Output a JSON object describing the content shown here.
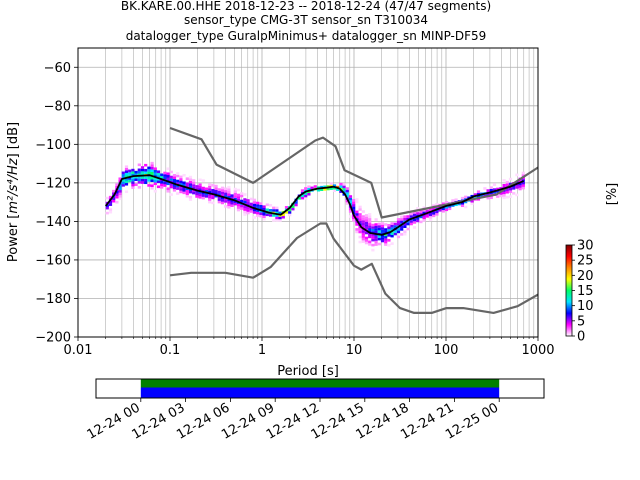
{
  "chart_data": {
    "type": "psd",
    "title_lines": [
      "BK.KARE.00.HHE   2018-12-23 -- 2018-12-24  (47/47 segments)",
      "sensor_type CMG-3T sensor_sn T310034",
      "datalogger_type GuralpMinimus+ datalogger_sn MINP-DF59"
    ],
    "xlabel": "Period [s]",
    "ylabel_prefix": "Power [",
    "ylabel_math": "m²/s⁴/Hz",
    "ylabel_suffix": "] [dB]",
    "x_scale": "log",
    "xlim": [
      0.01,
      1000
    ],
    "ylim": [
      -200,
      -50
    ],
    "x_ticks": [
      {
        "value": 0.01,
        "label": "0.01"
      },
      {
        "value": 0.1,
        "label": "0.1"
      },
      {
        "value": 1,
        "label": "1"
      },
      {
        "value": 10,
        "label": "10"
      },
      {
        "value": 100,
        "label": "100"
      },
      {
        "value": 1000,
        "label": "1000"
      }
    ],
    "y_ticks": [
      {
        "value": -60,
        "label": "−60"
      },
      {
        "value": -80,
        "label": "−80"
      },
      {
        "value": -100,
        "label": "−100"
      },
      {
        "value": -120,
        "label": "−120"
      },
      {
        "value": -140,
        "label": "−140"
      },
      {
        "value": -160,
        "label": "−160"
      },
      {
        "value": -180,
        "label": "−180"
      },
      {
        "value": -200,
        "label": "−200"
      }
    ],
    "grid": true,
    "colorbar": {
      "label": "[%]",
      "min": 0,
      "max": 30,
      "ticks": [
        {
          "value": 0,
          "label": "0"
        },
        {
          "value": 5,
          "label": "5"
        },
        {
          "value": 10,
          "label": "10"
        },
        {
          "value": 15,
          "label": "15"
        },
        {
          "value": 20,
          "label": "20"
        },
        {
          "value": 25,
          "label": "25"
        },
        {
          "value": 30,
          "label": "30"
        }
      ]
    },
    "nhnm": {
      "name": "New High Noise Model",
      "color": "#666666",
      "points": [
        [
          0.1,
          -91.5
        ],
        [
          0.22,
          -97.4
        ],
        [
          0.32,
          -110.5
        ],
        [
          0.8,
          -120
        ],
        [
          3.8,
          -98
        ],
        [
          4.6,
          -96.5
        ],
        [
          6.3,
          -101
        ],
        [
          7.9,
          -113.5
        ],
        [
          15.4,
          -120
        ],
        [
          20,
          -138
        ],
        [
          354.8,
          -126
        ],
        [
          1000,
          -112
        ]
      ]
    },
    "nlnm": {
      "name": "New Low Noise Model",
      "color": "#666666",
      "points": [
        [
          0.1,
          -168
        ],
        [
          0.17,
          -166.7
        ],
        [
          0.4,
          -166.7
        ],
        [
          0.8,
          -169.2
        ],
        [
          1.24,
          -163.7
        ],
        [
          2.4,
          -148.6
        ],
        [
          4.3,
          -141.1
        ],
        [
          5,
          -141.1
        ],
        [
          6,
          -149
        ],
        [
          10,
          -163
        ],
        [
          12,
          -165
        ],
        [
          15.6,
          -162
        ],
        [
          21.9,
          -177.5
        ],
        [
          31.6,
          -185
        ],
        [
          45,
          -187.5
        ],
        [
          70,
          -187.5
        ],
        [
          101,
          -185
        ],
        [
          154,
          -185
        ],
        [
          328,
          -187.5
        ],
        [
          600,
          -184
        ],
        [
          1000,
          -178
        ]
      ]
    },
    "mode": {
      "name": "mode",
      "color": "#000000",
      "points": [
        [
          0.02,
          -132
        ],
        [
          0.025,
          -126
        ],
        [
          0.03,
          -118
        ],
        [
          0.04,
          -116.5
        ],
        [
          0.06,
          -116
        ],
        [
          0.08,
          -118
        ],
        [
          0.12,
          -121
        ],
        [
          0.2,
          -124
        ],
        [
          0.3,
          -126
        ],
        [
          0.5,
          -129
        ],
        [
          0.8,
          -133
        ],
        [
          1.2,
          -135.5
        ],
        [
          1.6,
          -136.5
        ],
        [
          2,
          -133
        ],
        [
          2.5,
          -127
        ],
        [
          3,
          -124.5
        ],
        [
          4,
          -123
        ],
        [
          5,
          -122.5
        ],
        [
          6,
          -122
        ],
        [
          7,
          -123
        ],
        [
          8,
          -126
        ],
        [
          9,
          -131
        ],
        [
          10,
          -137
        ],
        [
          12,
          -143
        ],
        [
          15,
          -146
        ],
        [
          20,
          -147
        ],
        [
          25,
          -145.5
        ],
        [
          30,
          -143
        ],
        [
          40,
          -139
        ],
        [
          60,
          -136
        ],
        [
          100,
          -132
        ],
        [
          150,
          -130
        ],
        [
          200,
          -127
        ],
        [
          300,
          -125
        ],
        [
          500,
          -122
        ],
        [
          700,
          -119
        ]
      ]
    },
    "psd_scatter": {
      "name": "probabilistic PSD bands",
      "color_stops": [
        "#ffffff",
        "#ff00ff",
        "#0000ff",
        "#00e5ff",
        "#00ff66",
        "#ffff00",
        "#ff8800",
        "#ff0000",
        "#800000"
      ],
      "bands": [
        {
          "x": [
            0.02,
            0.025,
            0.03,
            0.04,
            0.06,
            0.08,
            0.12,
            0.2,
            0.3,
            0.5,
            0.8,
            1.2,
            1.6,
            2,
            2.5,
            3,
            4,
            5,
            6,
            7,
            8,
            9,
            10,
            12,
            15,
            20,
            25,
            30,
            40,
            60,
            100,
            150,
            200,
            300,
            500,
            700
          ],
          "center": [
            -132,
            -126,
            -118,
            -116.5,
            -116,
            -118,
            -121,
            -124,
            -126,
            -129,
            -133,
            -135.5,
            -136.5,
            -133,
            -127,
            -124.5,
            -123,
            -122.5,
            -122,
            -123,
            -126,
            -131,
            -137,
            -143,
            -146,
            -147,
            -145.5,
            -143,
            -139,
            -136,
            -132,
            -130,
            -127,
            -125,
            -122,
            -119
          ],
          "spread": [
            5,
            6,
            7,
            7,
            8,
            7,
            6,
            6,
            6,
            6,
            5,
            4,
            3,
            3,
            3,
            3,
            2,
            2,
            2,
            3,
            5,
            8,
            10,
            10,
            9,
            7,
            6,
            6,
            5,
            4,
            3,
            3,
            3,
            4,
            5,
            6
          ],
          "percent": [
            6,
            8,
            12,
            15,
            14,
            10,
            8,
            8,
            7,
            7,
            9,
            14,
            18,
            16,
            13,
            15,
            20,
            24,
            22,
            18,
            12,
            8,
            6,
            6,
            8,
            12,
            12,
            9,
            8,
            7,
            9,
            10,
            10,
            8,
            7,
            6
          ]
        }
      ]
    },
    "time_bar": {
      "tick_labels": [
        "12-24 00",
        "12-24 03",
        "12-24 06",
        "12-24 09",
        "12-24 12",
        "12-24 15",
        "12-24 18",
        "12-24 21",
        "12-25 00"
      ],
      "start_hour": 0,
      "end_hour": 24,
      "span_hours": [
        -3,
        27
      ],
      "coverage_color": "#008000",
      "data_color": "#0000ff"
    }
  }
}
